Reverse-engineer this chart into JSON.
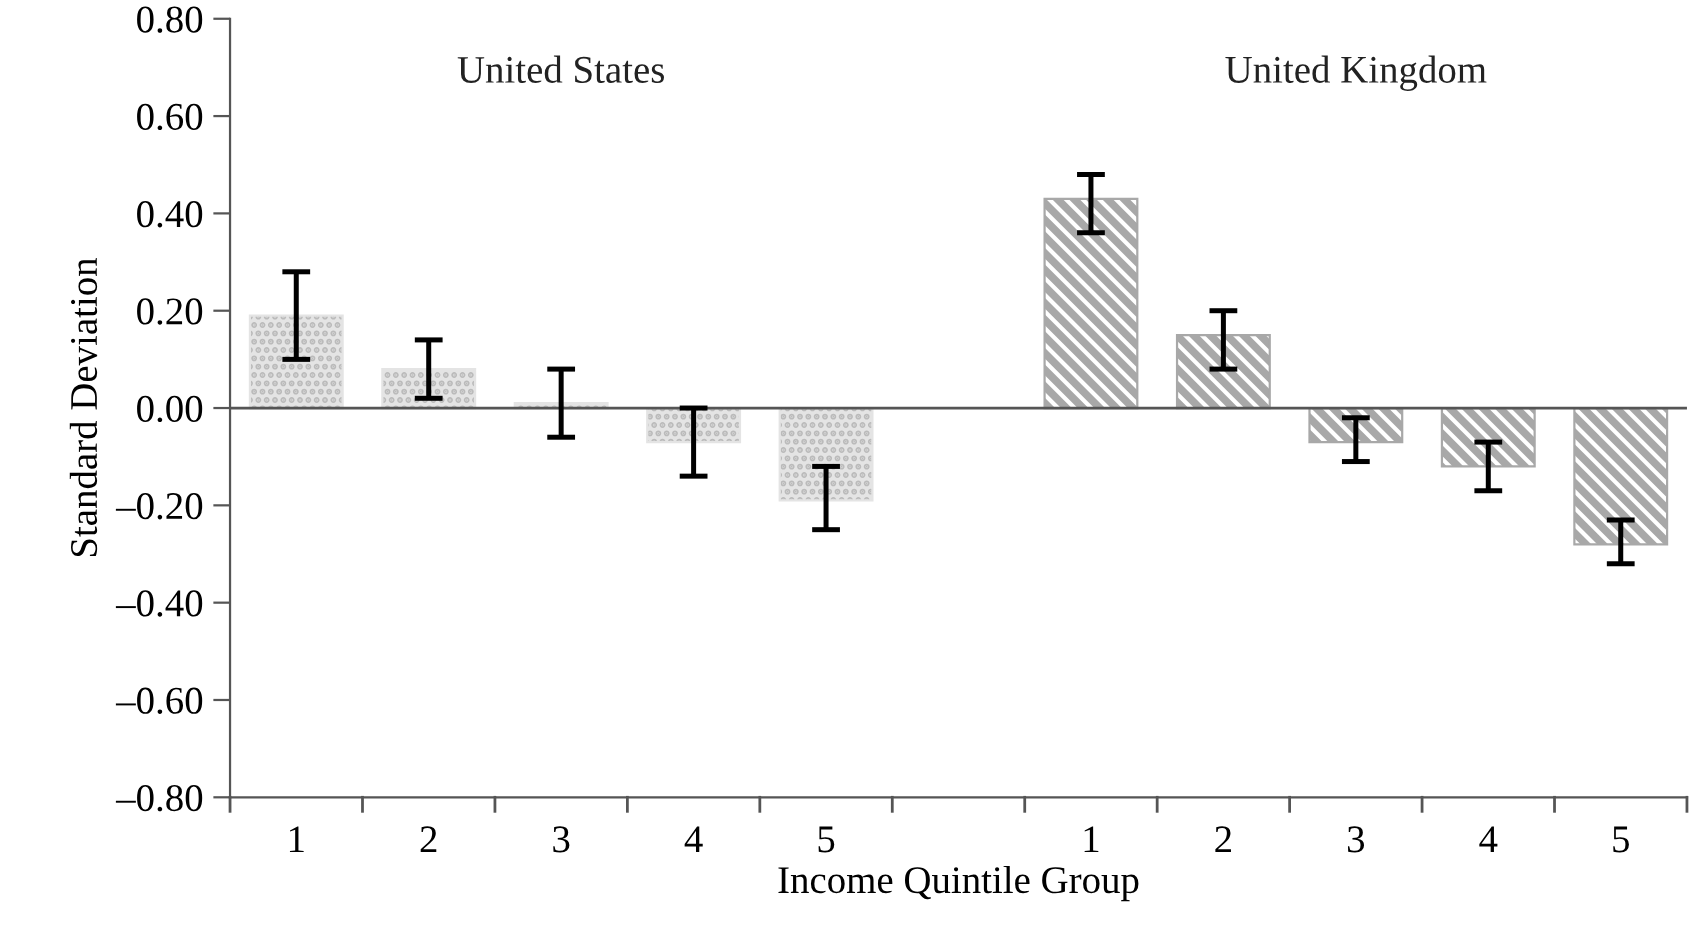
{
  "chart_data": {
    "type": "bar",
    "xlabel": "Income Quintile Group",
    "ylabel": "Standard Deviation",
    "categories": [
      "1",
      "2",
      "3",
      "4",
      "5",
      null,
      "1",
      "2",
      "3",
      "4",
      "5"
    ],
    "series": [
      {
        "color": "#e4e4e4",
        "values": [
          0.19,
          0.08,
          0.01,
          -0.07,
          -0.19,
          null,
          null,
          null,
          null,
          null,
          null
        ],
        "errors": [
          [
            0.1,
            0.28
          ],
          [
            0.02,
            0.14
          ],
          [
            -0.06,
            0.08
          ],
          [
            -0.14,
            0.0
          ],
          [
            -0.25,
            -0.12
          ],
          null,
          null,
          null,
          null,
          null,
          null
        ]
      },
      {
        "color": "#a8a8a8",
        "values": [
          null,
          null,
          null,
          null,
          null,
          null,
          0.43,
          0.15,
          -0.07,
          -0.12,
          -0.28
        ],
        "errors": [
          null,
          null,
          null,
          null,
          null,
          null,
          [
            0.36,
            0.48
          ],
          [
            0.08,
            0.2
          ],
          [
            -0.11,
            -0.02
          ],
          [
            -0.17,
            -0.07
          ],
          [
            -0.32,
            -0.23
          ]
        ]
      }
    ],
    "ylim": [
      -0.8,
      0.8
    ],
    "yticks": [
      {
        "value": -0.8,
        "label": "–0.80"
      },
      {
        "value": -0.6,
        "label": "–0.60"
      },
      {
        "value": -0.4,
        "label": "–0.40"
      },
      {
        "value": -0.2,
        "label": "–0.20"
      },
      {
        "value": 0,
        "label": "0.00"
      },
      {
        "value": 0.2,
        "label": "0.20"
      },
      {
        "value": 0.4,
        "label": "0.40"
      },
      {
        "value": 0.6,
        "label": "0.60"
      },
      {
        "value": 0.8,
        "label": "0.80"
      }
    ],
    "annotations": [
      "United States",
      "United Kingdom"
    ],
    "legend": false
  }
}
